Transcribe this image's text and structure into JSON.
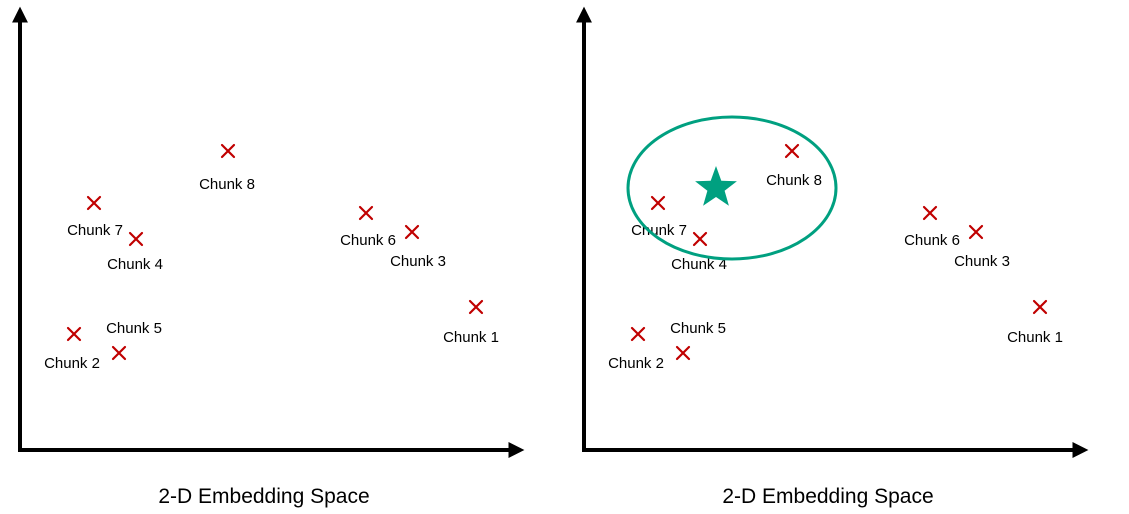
{
  "colors": {
    "axis": "#000000",
    "marker": "#c00000",
    "query": "#00a080",
    "text": "#000000"
  },
  "marker_icon": "x-mark",
  "query_icon": "star-icon",
  "panels": [
    {
      "caption": "2-D Embedding Space",
      "chunks": [
        {
          "label": "Chunk 8"
        },
        {
          "label": "Chunk 7"
        },
        {
          "label": "Chunk 4"
        },
        {
          "label": "Chunk 6"
        },
        {
          "label": "Chunk 3"
        },
        {
          "label": "Chunk 1"
        },
        {
          "label": "Chunk 5"
        },
        {
          "label": "Chunk 2"
        }
      ]
    },
    {
      "caption": "2-D Embedding Space",
      "chunks": [
        {
          "label": "Chunk 8"
        },
        {
          "label": "Chunk 7"
        },
        {
          "label": "Chunk 4"
        },
        {
          "label": "Chunk 6"
        },
        {
          "label": "Chunk 3"
        },
        {
          "label": "Chunk 1"
        },
        {
          "label": "Chunk 5"
        },
        {
          "label": "Chunk 2"
        }
      ]
    }
  ]
}
